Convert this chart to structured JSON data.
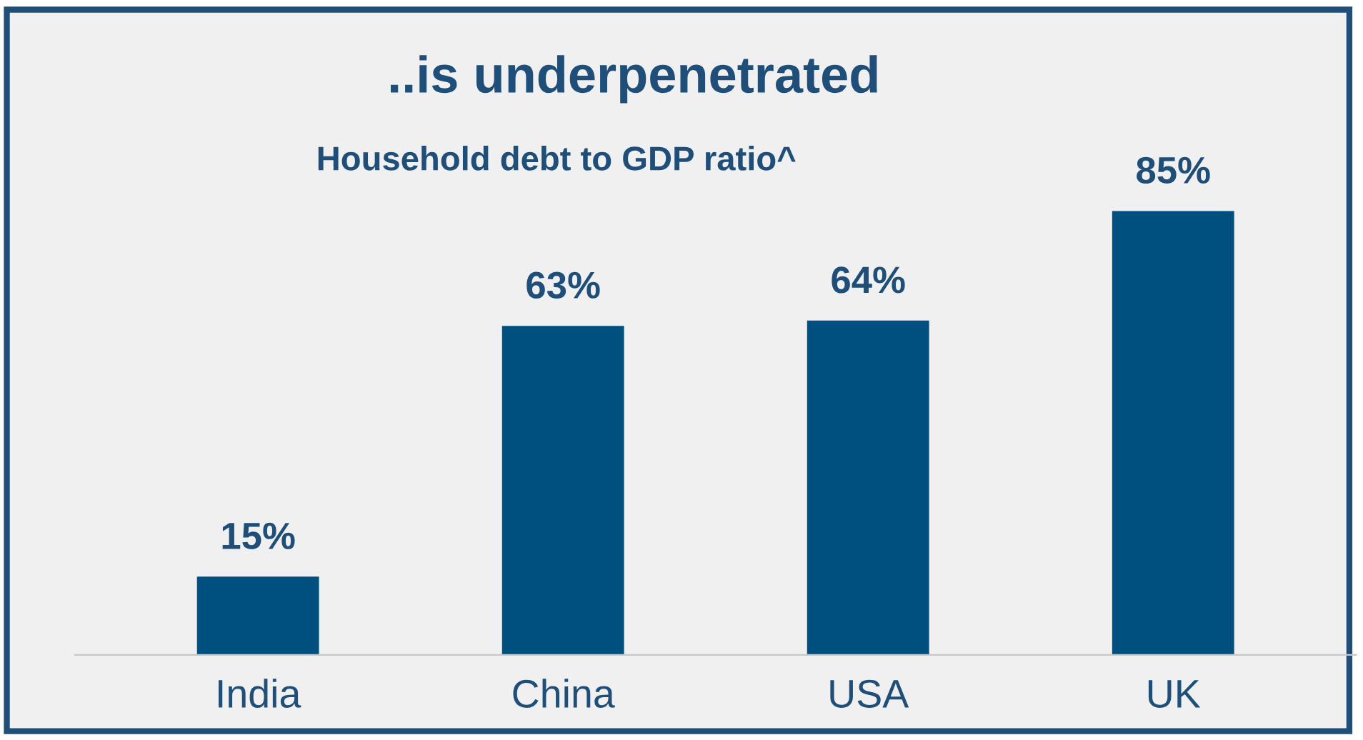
{
  "chart_data": {
    "type": "bar",
    "title": "..is underpenetrated",
    "subtitle": "Household debt to GDP ratio^",
    "categories": [
      "India",
      "China",
      "USA",
      "UK"
    ],
    "values": [
      15,
      63,
      64,
      85
    ],
    "value_labels": [
      "15%",
      "63%",
      "64%",
      "85%"
    ],
    "color": "#00507f",
    "grid": false,
    "legend": false
  }
}
